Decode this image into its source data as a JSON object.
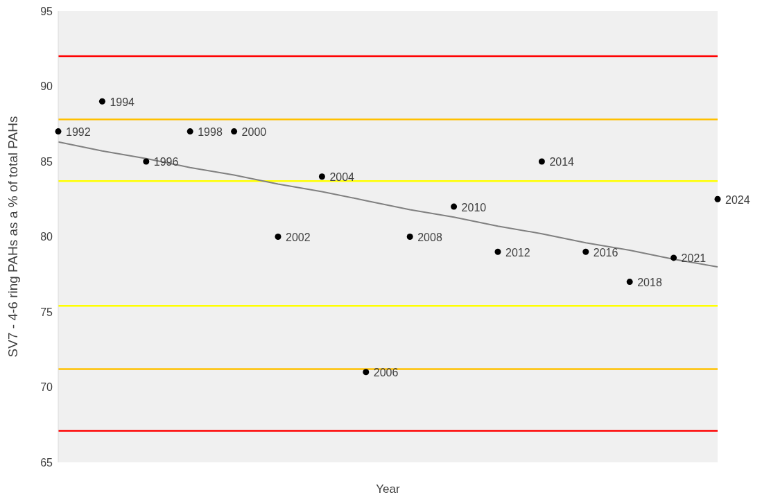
{
  "chart_data": {
    "type": "scatter",
    "xlabel": "Year",
    "ylabel": "SV7 - 4-6 ring PAHs as a % of total PAHs",
    "categories": [
      null,
      null,
      null,
      null,
      null,
      null,
      null,
      null,
      null,
      null,
      null,
      null,
      null,
      null,
      null,
      null
    ],
    "series": [
      {
        "name": "1992",
        "color": "#000000",
        "values": [
          87,
          null,
          null,
          null,
          null,
          null,
          null,
          null,
          null,
          null,
          null,
          null,
          null,
          null,
          null,
          null
        ]
      },
      {
        "name": "1994",
        "color": "#000000",
        "values": [
          null,
          89,
          null,
          null,
          null,
          null,
          null,
          null,
          null,
          null,
          null,
          null,
          null,
          null,
          null,
          null
        ]
      },
      {
        "name": "1996",
        "color": "#000000",
        "values": [
          null,
          null,
          85,
          null,
          null,
          null,
          null,
          null,
          null,
          null,
          null,
          null,
          null,
          null,
          null,
          null
        ]
      },
      {
        "name": "1998",
        "color": "#000000",
        "values": [
          null,
          null,
          null,
          87,
          null,
          null,
          null,
          null,
          null,
          null,
          null,
          null,
          null,
          null,
          null,
          null
        ]
      },
      {
        "name": "2000",
        "color": "#000000",
        "values": [
          null,
          null,
          null,
          null,
          87,
          null,
          null,
          null,
          null,
          null,
          null,
          null,
          null,
          null,
          null,
          null
        ]
      },
      {
        "name": "2002",
        "color": "#000000",
        "values": [
          null,
          null,
          null,
          null,
          null,
          80,
          null,
          null,
          null,
          null,
          null,
          null,
          null,
          null,
          null,
          null
        ]
      },
      {
        "name": "2004",
        "color": "#000000",
        "values": [
          null,
          null,
          null,
          null,
          null,
          null,
          84,
          null,
          null,
          null,
          null,
          null,
          null,
          null,
          null,
          null
        ]
      },
      {
        "name": "2006",
        "color": "#000000",
        "values": [
          null,
          null,
          null,
          null,
          null,
          null,
          null,
          71,
          null,
          null,
          null,
          null,
          null,
          null,
          null,
          null
        ]
      },
      {
        "name": "2008",
        "color": "#000000",
        "values": [
          null,
          null,
          null,
          null,
          null,
          null,
          null,
          null,
          80,
          null,
          null,
          null,
          null,
          null,
          null,
          null
        ]
      },
      {
        "name": "2010",
        "color": "#000000",
        "values": [
          null,
          null,
          null,
          null,
          null,
          null,
          null,
          null,
          null,
          82,
          null,
          null,
          null,
          null,
          null,
          null
        ]
      },
      {
        "name": "2012",
        "color": "#000000",
        "values": [
          null,
          null,
          null,
          null,
          null,
          null,
          null,
          null,
          null,
          null,
          79,
          null,
          null,
          null,
          null,
          null
        ]
      },
      {
        "name": "2014",
        "color": "#000000",
        "values": [
          null,
          null,
          null,
          null,
          null,
          null,
          null,
          null,
          null,
          null,
          null,
          85,
          null,
          null,
          null,
          null
        ]
      },
      {
        "name": "2016",
        "color": "#000000",
        "values": [
          null,
          null,
          null,
          null,
          null,
          null,
          null,
          null,
          null,
          null,
          null,
          null,
          79,
          null,
          null,
          null
        ]
      },
      {
        "name": "2018",
        "color": "#000000",
        "values": [
          null,
          null,
          null,
          null,
          null,
          null,
          null,
          null,
          null,
          null,
          null,
          null,
          null,
          77,
          null,
          null
        ]
      },
      {
        "name": "2021",
        "color": "#000000",
        "values": [
          null,
          null,
          null,
          null,
          null,
          null,
          null,
          null,
          null,
          null,
          null,
          null,
          null,
          null,
          78.6,
          null
        ]
      },
      {
        "name": "2024",
        "color": "#000000",
        "values": [
          null,
          null,
          null,
          null,
          null,
          null,
          null,
          null,
          null,
          null,
          null,
          null,
          null,
          null,
          null,
          82.5
        ]
      },
      {
        "type": "line",
        "color": "#808080",
        "marker": "none",
        "values": [
          86.3,
          85.7,
          85.2,
          84.6,
          84.1,
          83.5,
          83.0,
          82.4,
          81.8,
          81.3,
          80.7,
          80.2,
          79.6,
          79.1,
          78.5,
          78.0
        ]
      }
    ],
    "ylim": [
      65,
      95
    ],
    "yticks": [
      65,
      70,
      75,
      80,
      85,
      90,
      95
    ],
    "grid": false,
    "legend": false,
    "marker": "circle",
    "ref_lines": [
      {
        "axis": "y",
        "value": 92,
        "color": "#ff0000"
      },
      {
        "axis": "y",
        "value": 87.8,
        "color": "#ffc000"
      },
      {
        "axis": "y",
        "value": 83.7,
        "color": "#ffff00"
      },
      {
        "axis": "y",
        "value": 75.4,
        "color": "#ffff00"
      },
      {
        "axis": "y",
        "value": 71.2,
        "color": "#ffc000"
      },
      {
        "axis": "y",
        "value": 67.1,
        "color": "#ff0000"
      }
    ]
  }
}
